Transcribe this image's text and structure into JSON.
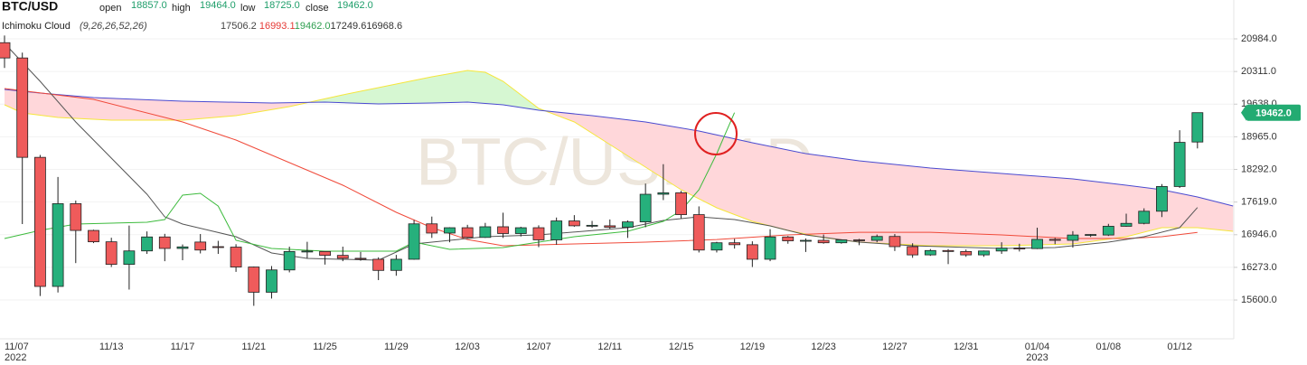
{
  "chart_data": {
    "type": "candlestick",
    "title": "BTC/USD",
    "watermark": "BTC/USD,1D",
    "ohlc_fields": [
      {
        "name": "open",
        "value": 18857,
        "label": "18857.0"
      },
      {
        "name": "high",
        "value": 19464,
        "label": "19464.0"
      },
      {
        "name": "low",
        "value": 18725,
        "label": "18725.0"
      },
      {
        "name": "close",
        "value": 19462,
        "label": "19462.0"
      }
    ],
    "indicator": {
      "name": "Ichimoku Cloud",
      "params": "(9,26,26,52,26)",
      "values": [
        {
          "value": 17506.2,
          "label": "17506.2",
          "color": "#444444"
        },
        {
          "value": 16993.1,
          "label": "16993.1",
          "color": "#e53935"
        },
        {
          "value": 19462.0,
          "label": "19462.0",
          "color": "#2e9e4f"
        },
        {
          "value": 17249.6,
          "label": "17249.6",
          "color": "#333333"
        },
        {
          "value": 16968.6,
          "label": "16968.6",
          "color": "#333333"
        }
      ]
    },
    "categories": [
      "11/07",
      null,
      null,
      null,
      null,
      null,
      "11/13",
      null,
      null,
      null,
      "11/17",
      null,
      null,
      null,
      "11/21",
      null,
      null,
      null,
      "11/25",
      null,
      null,
      null,
      "11/29",
      null,
      null,
      null,
      "12/03",
      null,
      null,
      null,
      "12/07",
      null,
      null,
      null,
      "12/11",
      null,
      null,
      null,
      "12/15",
      null,
      null,
      null,
      "12/19",
      null,
      null,
      null,
      "12/23",
      null,
      null,
      null,
      "12/27",
      null,
      null,
      null,
      "12/31",
      null,
      null,
      null,
      "01/04",
      null,
      null,
      null,
      "01/08",
      null,
      null,
      null,
      "01/12",
      null
    ],
    "year_labels": [
      {
        "category": "11/07",
        "label": "2022"
      },
      {
        "category": "01/04",
        "label": "2023"
      }
    ],
    "open": [
      20905,
      20590,
      18541,
      15880,
      17586,
      17034,
      16800,
      16335,
      16612,
      16900,
      16663,
      16795,
      16700,
      16690,
      16280,
      15760,
      16220,
      16590,
      16600,
      16520,
      16460,
      16440,
      16210,
      16440,
      17170,
      16980,
      17090,
      16890,
      17110,
      16970,
      17090,
      16840,
      17230,
      17130,
      17130,
      17100,
      17210,
      17780,
      17810,
      17360,
      16630,
      16780,
      16740,
      16440,
      16900,
      16820,
      16830,
      16780,
      16840,
      16830,
      16910,
      16700,
      16530,
      16620,
      16600,
      16530,
      16610,
      16670,
      16660,
      16850,
      16830,
      16940,
      16940,
      17120,
      17180,
      17430,
      17940,
      18857
    ],
    "high": [
      21053,
      20700,
      18590,
      18136,
      17650,
      17049,
      16884,
      17135,
      17014,
      16964,
      16745,
      16960,
      16820,
      16750,
      16290,
      16300,
      16700,
      16800,
      16600,
      16700,
      16590,
      16480,
      16530,
      17250,
      17320,
      17100,
      17150,
      17190,
      17400,
      17110,
      17140,
      17300,
      17350,
      17230,
      17260,
      17240,
      18000,
      18400,
      17850,
      17530,
      16800,
      16860,
      16810,
      17060,
      16920,
      16870,
      16950,
      16850,
      16860,
      16950,
      16960,
      16770,
      16650,
      16650,
      16640,
      16620,
      16790,
      16760,
      17090,
      16880,
      17020,
      16960,
      17170,
      17380,
      17490,
      17990,
      19100,
      19464
    ],
    "low": [
      20384,
      17166,
      15682,
      15755,
      16361,
      16773,
      16281,
      15815,
      16550,
      16400,
      16420,
      16560,
      16550,
      16180,
      15480,
      15630,
      16170,
      16460,
      16330,
      16400,
      16410,
      16010,
      16100,
      16430,
      16880,
      16790,
      16880,
      16880,
      16880,
      16910,
      16690,
      16740,
      17110,
      17090,
      17070,
      16880,
      17100,
      17660,
      17280,
      16580,
      16580,
      16660,
      16280,
      16400,
      16760,
      16590,
      16760,
      16760,
      16730,
      16790,
      16610,
      16470,
      16510,
      16340,
      16490,
      16490,
      16550,
      16600,
      16650,
      16750,
      16680,
      16900,
      16920,
      17110,
      17160,
      17310,
      17910,
      18725
    ],
    "close": [
      20590,
      18541,
      15880,
      17586,
      17034,
      16800,
      16335,
      16612,
      16900,
      16663,
      16695,
      16630,
      16690,
      16280,
      15760,
      16220,
      16600,
      16610,
      16520,
      16460,
      16440,
      16210,
      16440,
      17170,
      16980,
      17090,
      16890,
      17110,
      16970,
      17090,
      16840,
      17230,
      17130,
      17140,
      17100,
      17210,
      17780,
      17810,
      17360,
      16630,
      16780,
      16740,
      16440,
      16900,
      16820,
      16830,
      16780,
      16840,
      16830,
      16910,
      16700,
      16530,
      16620,
      16600,
      16530,
      16610,
      16670,
      16660,
      16850,
      16830,
      16940,
      16950,
      17120,
      17180,
      17430,
      17940,
      18850,
      19462
    ],
    "up_color": "#26b07c",
    "down_color": "#ef5b5b",
    "tenkan": {
      "color": "#555555",
      "x": [
        0,
        2,
        4,
        6,
        8,
        9,
        10,
        13,
        15,
        17,
        21,
        23,
        27,
        30,
        35,
        37,
        39,
        41,
        43,
        45,
        48,
        51,
        56,
        59,
        62,
        64,
        66,
        67
      ],
      "values": [
        20891,
        20108,
        19270,
        18525,
        17780,
        17314,
        17165,
        16904,
        16569,
        16457,
        16420,
        16755,
        16904,
        16942,
        17091,
        17240,
        17314,
        17258,
        17128,
        16942,
        16793,
        16718,
        16662,
        16681,
        16793,
        16904,
        17091,
        17506.2
      ]
    },
    "kijun": {
      "color": "#f04a3a",
      "x": [
        0,
        5,
        10,
        13,
        16,
        19,
        22,
        24,
        26,
        28,
        32,
        36,
        40,
        44,
        48,
        52,
        56,
        60,
        63,
        65,
        67
      ],
      "values": [
        19959,
        19736,
        19270,
        18898,
        18432,
        17966,
        17407,
        17091,
        16848,
        16718,
        16755,
        16793,
        16848,
        16942,
        16997,
        16997,
        16942,
        16867,
        16867,
        16904,
        16993.1
      ]
    },
    "chikou": {
      "color": "#3dbb3d",
      "x": [
        0,
        2,
        4,
        8,
        9,
        10,
        11,
        12,
        13,
        15,
        18,
        22,
        23,
        25,
        28,
        30,
        32,
        35,
        37,
        38,
        39,
        40,
        41
      ],
      "values": [
        16867,
        17035,
        17165,
        17202,
        17258,
        17761,
        17798,
        17537,
        16830,
        16662,
        16606,
        16606,
        16793,
        16644,
        16681,
        16793,
        16904,
        17016,
        17221,
        17445,
        17873,
        18618,
        19462
      ]
    },
    "span_a": {
      "color": "#f5e63c",
      "x": [
        0,
        1,
        3,
        6,
        10,
        13,
        16,
        19,
        22,
        24,
        26,
        27,
        28,
        29,
        30,
        32,
        34,
        36,
        38,
        40,
        42,
        44,
        46,
        48,
        52,
        56,
        60,
        63,
        65,
        67,
        69
      ],
      "values": [
        19624,
        19456,
        19363,
        19307,
        19307,
        19400,
        19587,
        19829,
        20053,
        20202,
        20332,
        20295,
        20108,
        19829,
        19550,
        19270,
        18804,
        18339,
        17873,
        17501,
        17221,
        17035,
        16886,
        16793,
        16718,
        16718,
        16755,
        16904,
        17091,
        17091,
        17016
      ]
    },
    "span_b": {
      "color": "#4a4ad0",
      "x": [
        0,
        2,
        5,
        10,
        15,
        18,
        21,
        24,
        26,
        28,
        30,
        33,
        36,
        39,
        42,
        45,
        48,
        52,
        56,
        60,
        63,
        65,
        67,
        69
      ],
      "values": [
        19941,
        19866,
        19773,
        19699,
        19661,
        19680,
        19643,
        19661,
        19680,
        19624,
        19512,
        19400,
        19270,
        19084,
        18842,
        18618,
        18469,
        18320,
        18208,
        18096,
        17966,
        17873,
        17724,
        17538
      ]
    },
    "cloud_colors": {
      "up": "#d6f7d2",
      "down": "#ffd7da"
    },
    "last_price": {
      "value": 19462,
      "label": "19462.0",
      "color": "#23ab72"
    },
    "xlim": [
      -0.254,
      69.04
    ],
    "ylim": [
      14800,
      21785
    ],
    "yticks": [
      {
        "value": 15600,
        "label": "15600.0"
      },
      {
        "value": 16273,
        "label": "16273.0"
      },
      {
        "value": 16946,
        "label": "16946.0"
      },
      {
        "value": 17619,
        "label": "17619.0"
      },
      {
        "value": 18292,
        "label": "18292.0"
      },
      {
        "value": 18965,
        "label": "18965.0"
      },
      {
        "value": 19638,
        "label": "19638.0"
      },
      {
        "value": 20311,
        "label": "20311.0"
      },
      {
        "value": 20984,
        "label": "20984.0"
      }
    ],
    "grid": true
  }
}
